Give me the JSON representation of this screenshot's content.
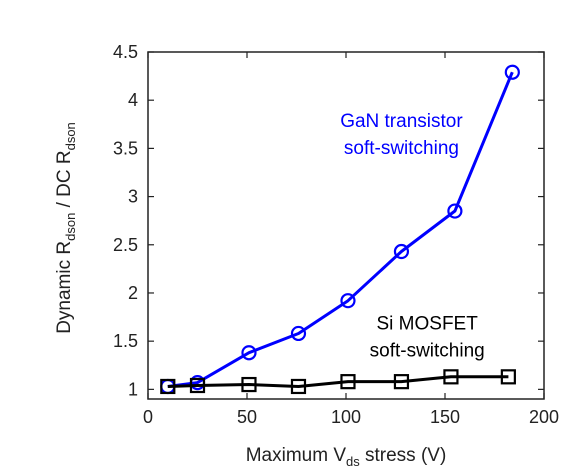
{
  "chart_data": {
    "type": "line",
    "title": "",
    "xlabel": {
      "main": "Maximum V",
      "sub": "ds",
      "rest": " stress (V)"
    },
    "ylabel": {
      "p1": "Dynamic R",
      "s1": "dson",
      "p2": " / DC R",
      "s2": "dson"
    },
    "xlim": [
      0,
      200
    ],
    "ylim": [
      0.9,
      4.5
    ],
    "xticks": [
      0,
      50,
      100,
      150,
      200
    ],
    "yticks": [
      1,
      1.5,
      2,
      2.5,
      3,
      3.5,
      4,
      4.5
    ],
    "grid": false,
    "series": [
      {
        "key": "gan",
        "color": "#0000ff",
        "marker": "circle",
        "x": [
          10,
          25,
          51,
          76,
          101,
          128,
          155,
          184
        ],
        "y": [
          1.03,
          1.07,
          1.38,
          1.58,
          1.92,
          2.43,
          2.85,
          4.29
        ]
      },
      {
        "key": "si",
        "color": "#000000",
        "marker": "square",
        "x": [
          10,
          25,
          51,
          76,
          101,
          128,
          153,
          182
        ],
        "y": [
          1.03,
          1.04,
          1.05,
          1.03,
          1.08,
          1.08,
          1.13,
          1.13
        ]
      }
    ],
    "annotations": [
      {
        "key": "gan-annotation",
        "lines": [
          "GaN transistor",
          "soft-switching"
        ],
        "color": "#0000ff",
        "x": 128,
        "y": 3.72
      },
      {
        "key": "si-annotation",
        "lines": [
          "Si MOSFET",
          "soft-switching"
        ],
        "color": "#000000",
        "x": 141,
        "y": 1.62
      }
    ]
  }
}
